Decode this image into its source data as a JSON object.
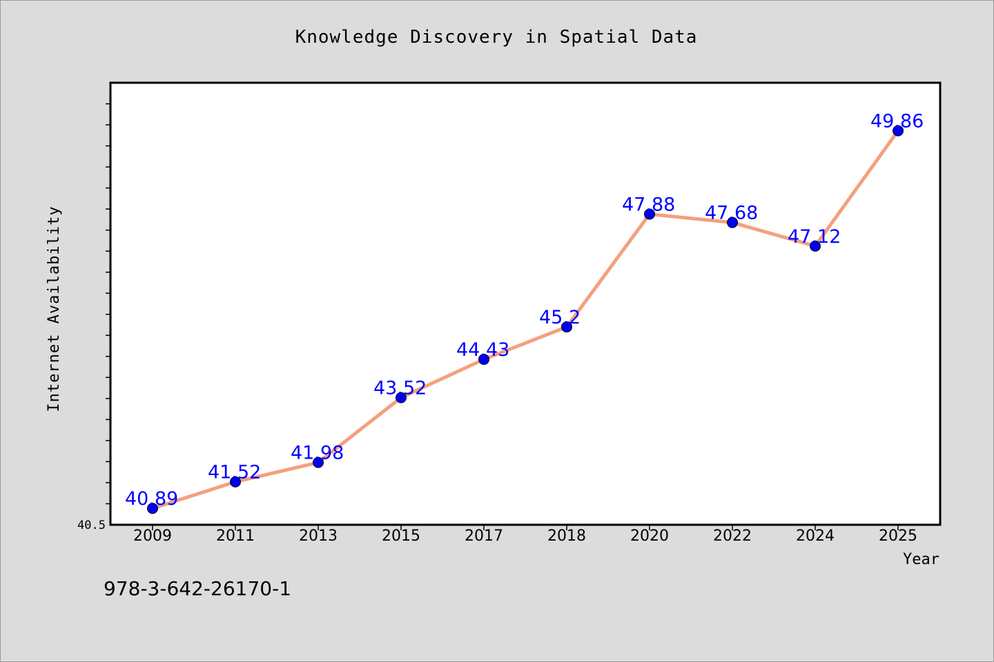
{
  "chart_data": {
    "type": "line",
    "title": "Knowledge Discovery in Spatial Data",
    "xlabel": "Year",
    "ylabel": "Internet Availability",
    "categories": [
      "2009",
      "2011",
      "2013",
      "2015",
      "2017",
      "2018",
      "2020",
      "2022",
      "2024",
      "2025"
    ],
    "series": [
      {
        "values": [
          40.89,
          41.52,
          41.98,
          43.52,
          44.43,
          45.2,
          47.88,
          47.68,
          47.12,
          49.86
        ]
      }
    ],
    "data_labels": [
      "40.89",
      "41.52",
      "41.98",
      "43.52",
      "44.43",
      "45.2",
      "47.88",
      "47.68",
      "47.12",
      "49.86"
    ],
    "y_tick_labels": [
      "40.5"
    ],
    "ylim": [
      40.5,
      51.0
    ],
    "grid": false,
    "legend": "none",
    "colors": {
      "line": "#f4a07e",
      "marker": "#0000ee",
      "label": "#0000ff",
      "plot_bg": "#ffffff",
      "figure_bg": "#dcdcdc"
    }
  },
  "footer": {
    "isbn": "978-3-642-26170-1"
  }
}
